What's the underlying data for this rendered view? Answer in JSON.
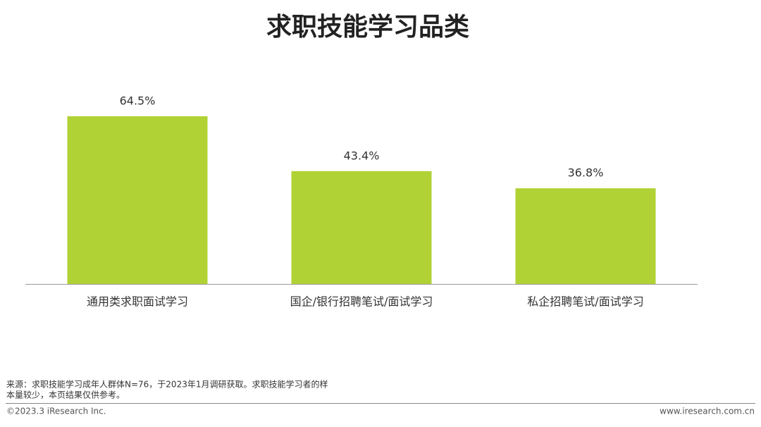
{
  "chart_data": {
    "type": "bar",
    "title": "求职技能学习品类",
    "categories": [
      "通用类求职面试学习",
      "国企/银行招聘笔试/面试学习",
      "私企招聘笔试/面试学习"
    ],
    "values": [
      64.5,
      43.4,
      36.8
    ],
    "value_labels": [
      "64.5%",
      "43.4%",
      "36.8%"
    ],
    "color": "#b0d235"
  },
  "footer": {
    "source_lines": [
      "来源：求职技能学习成年人群体N=76，于2023年1月调研获取。求职技能学习者的样",
      "本量较少，本页结果仅供参考。"
    ],
    "copyright": "©2023.3 iResearch Inc.",
    "website": "www.iresearch.com.cn"
  }
}
